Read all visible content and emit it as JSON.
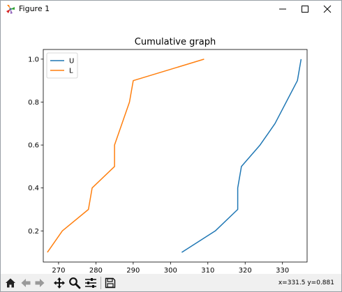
{
  "window": {
    "title": "Figure 1"
  },
  "icons": {
    "app": "matplotlib-icon",
    "minimize": "minimize-icon",
    "maximize": "maximize-icon",
    "close": "close-icon"
  },
  "toolbar": {
    "tools": [
      "home-icon",
      "back-arrow-icon",
      "forward-arrow-icon",
      "pan-icon",
      "zoom-icon",
      "configure-subplots-icon",
      "save-icon"
    ],
    "coords_text": "x=331.5 y=0.881"
  },
  "colors": {
    "series_u": "#1f77b4",
    "series_l": "#ff7f0e"
  },
  "chart_data": {
    "type": "line",
    "title": "Cumulative graph",
    "xlabel": "",
    "ylabel": "",
    "xlim": [
      265.9,
      336.6
    ],
    "ylim": [
      0.055,
      1.045
    ],
    "xticks": [
      270,
      280,
      290,
      300,
      310,
      320,
      330
    ],
    "yticks": [
      0.2,
      0.4,
      0.6,
      0.8,
      1.0
    ],
    "ytick_labels": [
      "0.2",
      "0.4",
      "0.6",
      "0.8",
      "1.0"
    ],
    "grid": false,
    "legend_position": "top-left",
    "series": [
      {
        "name": "U",
        "x": [
          303,
          312,
          318,
          318,
          319,
          324,
          328,
          334,
          335
        ],
        "y": [
          0.1,
          0.2,
          0.3,
          0.4,
          0.5,
          0.6,
          0.7,
          0.9,
          1.0
        ]
      },
      {
        "name": "L",
        "x": [
          267,
          271,
          278,
          279,
          285,
          285,
          289,
          290,
          309
        ],
        "y": [
          0.1,
          0.2,
          0.3,
          0.4,
          0.5,
          0.6,
          0.8,
          0.9,
          1.0
        ]
      }
    ]
  }
}
